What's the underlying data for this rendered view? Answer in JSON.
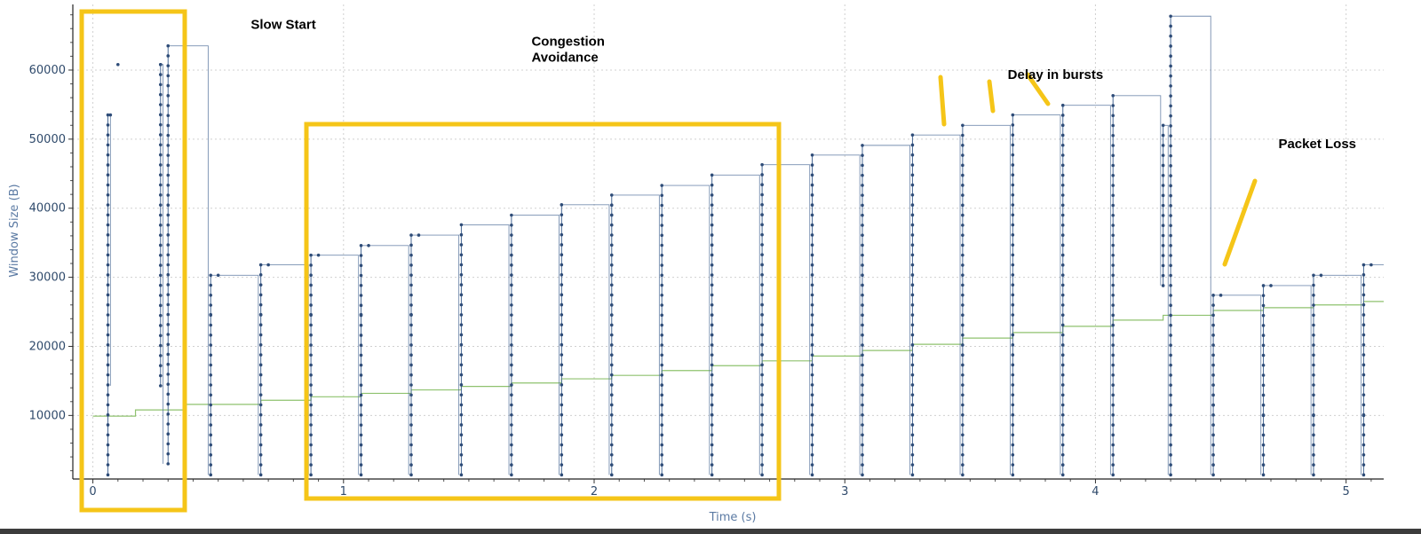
{
  "chart_data": {
    "type": "line",
    "title": "",
    "xlabel": "Time (s)",
    "ylabel": "Window Size (B)",
    "xlim": [
      -0.08,
      5.15
    ],
    "ylim": [
      800,
      69500
    ],
    "x_ticks": [
      "0",
      "1",
      "2",
      "3",
      "4",
      "5"
    ],
    "y_ticks": [
      "10000",
      "20000",
      "30000",
      "40000",
      "50000",
      "60000"
    ],
    "grid": true,
    "colors": {
      "window": "#4a6a95",
      "marker": "#2e4c78",
      "bytes": "#8fc26f",
      "annotation": "#f5c518",
      "grid": "#d0d0d0"
    },
    "series": [
      {
        "bursts": [
          {
            "t": 0.06,
            "low": 1400,
            "high": 53500
          },
          {
            "t": 0.27,
            "low": 14300,
            "high": 60800
          },
          {
            "t": 0.3,
            "low": 3000,
            "high": 63500
          },
          {
            "t": 0.47,
            "low": 1400,
            "high": 30300
          },
          {
            "t": 0.67,
            "low": 1400,
            "high": 31800
          },
          {
            "t": 0.87,
            "low": 1400,
            "high": 33200
          },
          {
            "t": 1.07,
            "low": 1400,
            "high": 34600
          },
          {
            "t": 1.27,
            "low": 1400,
            "high": 36100
          },
          {
            "t": 1.47,
            "low": 1400,
            "high": 37600
          },
          {
            "t": 1.67,
            "low": 1400,
            "high": 39000
          },
          {
            "t": 1.87,
            "low": 1400,
            "high": 40500
          },
          {
            "t": 2.07,
            "low": 1400,
            "high": 41900
          },
          {
            "t": 2.27,
            "low": 1400,
            "high": 43300
          },
          {
            "t": 2.47,
            "low": 1400,
            "high": 44800
          },
          {
            "t": 2.67,
            "low": 1400,
            "high": 46300
          },
          {
            "t": 2.87,
            "low": 1400,
            "high": 47700
          },
          {
            "t": 3.07,
            "low": 1400,
            "high": 49100
          },
          {
            "t": 3.27,
            "low": 1400,
            "high": 50600
          },
          {
            "t": 3.47,
            "low": 1400,
            "high": 52000
          },
          {
            "t": 3.67,
            "low": 1400,
            "high": 53500
          },
          {
            "t": 3.87,
            "low": 1400,
            "high": 54900
          },
          {
            "t": 4.07,
            "low": 1400,
            "high": 56300
          },
          {
            "t": 4.27,
            "low": 28800,
            "high": 52000
          },
          {
            "t": 4.3,
            "low": 1400,
            "high": 67800
          },
          {
            "t": 4.47,
            "low": 1400,
            "high": 27400
          },
          {
            "t": 4.67,
            "low": 1400,
            "high": 28800
          },
          {
            "t": 4.87,
            "low": 1400,
            "high": 30300
          },
          {
            "t": 5.07,
            "low": 1400,
            "high": 31800
          }
        ],
        "step_after": [
          {
            "t": 0.06,
            "to": 0.07
          },
          {
            "t": 0.27,
            "to": 0.28
          },
          {
            "t": 0.3,
            "to": 0.46
          },
          {
            "t": 0.47,
            "to": 0.66
          },
          {
            "t": 0.67,
            "to": 0.86
          },
          {
            "t": 0.87,
            "to": 1.06
          },
          {
            "t": 1.07,
            "to": 1.26
          },
          {
            "t": 1.27,
            "to": 1.46
          },
          {
            "t": 1.47,
            "to": 1.66
          },
          {
            "t": 1.67,
            "to": 1.86
          },
          {
            "t": 1.87,
            "to": 2.06
          },
          {
            "t": 2.07,
            "to": 2.26
          },
          {
            "t": 2.27,
            "to": 2.46
          },
          {
            "t": 2.47,
            "to": 2.66
          },
          {
            "t": 2.67,
            "to": 2.86
          },
          {
            "t": 2.87,
            "to": 3.06
          },
          {
            "t": 3.07,
            "to": 3.26
          },
          {
            "t": 3.27,
            "to": 3.46
          },
          {
            "t": 3.47,
            "to": 3.66
          },
          {
            "t": 3.67,
            "to": 3.86
          },
          {
            "t": 3.87,
            "to": 4.06
          },
          {
            "t": 4.07,
            "to": 4.26
          },
          {
            "t": 4.27,
            "to": 4.29
          },
          {
            "t": 4.3,
            "to": 4.46
          },
          {
            "t": 4.47,
            "to": 4.66
          },
          {
            "t": 4.67,
            "to": 4.86
          },
          {
            "t": 4.87,
            "to": 5.06
          },
          {
            "t": 5.07,
            "to": 5.15
          }
        ],
        "step_points": [
          {
            "x": 0.07,
            "y": 53500
          },
          {
            "x": 0.1,
            "y": 60800
          },
          {
            "x": 0.27,
            "y": 60800
          },
          {
            "x": 0.47,
            "y": 24600
          },
          {
            "x": 0.5,
            "y": 30300
          },
          {
            "x": 0.67,
            "y": 24600
          },
          {
            "x": 0.7,
            "y": 31800
          },
          {
            "x": 0.87,
            "y": 24600
          },
          {
            "x": 0.9,
            "y": 33200
          },
          {
            "x": 1.07,
            "y": 24600
          },
          {
            "x": 1.1,
            "y": 34600
          },
          {
            "x": 1.27,
            "y": 24600
          },
          {
            "x": 1.3,
            "y": 36100
          },
          {
            "x": 4.47,
            "y": 11500
          },
          {
            "x": 4.5,
            "y": 27400
          },
          {
            "x": 4.67,
            "y": 10000
          },
          {
            "x": 4.7,
            "y": 28800
          },
          {
            "x": 4.87,
            "y": 10000
          },
          {
            "x": 4.9,
            "y": 30300
          },
          {
            "x": 5.07,
            "y": 10000
          },
          {
            "x": 5.1,
            "y": 31800
          }
        ]
      },
      {
        "x": [
          0.0,
          0.17,
          0.37,
          0.47,
          0.67,
          0.87,
          1.07,
          1.27,
          1.47,
          1.67,
          1.87,
          2.07,
          2.27,
          2.47,
          2.67,
          2.87,
          3.07,
          3.27,
          3.47,
          3.67,
          3.87,
          4.07,
          4.27,
          4.47,
          4.67,
          4.87,
          5.07,
          5.15
        ],
        "values": [
          9900,
          10800,
          11600,
          11600,
          12200,
          12700,
          13200,
          13700,
          14200,
          14700,
          15300,
          15800,
          16500,
          17200,
          17900,
          18600,
          19400,
          20300,
          21200,
          22000,
          22900,
          23800,
          24500,
          25200,
          25600,
          26000,
          26500,
          26500
        ]
      }
    ],
    "annotations": [
      {
        "text": "Slow Start",
        "x": 0.63,
        "y": 66000
      },
      {
        "text": "Congestion",
        "x": 1.75,
        "y": 63500
      },
      {
        "text": "Avoidance",
        "x": 1.75,
        "y": 61200
      },
      {
        "text": "Delay in bursts",
        "x": 3.65,
        "y": 58700
      },
      {
        "text": "Packet Loss",
        "x": 4.73,
        "y": 48700
      }
    ]
  }
}
